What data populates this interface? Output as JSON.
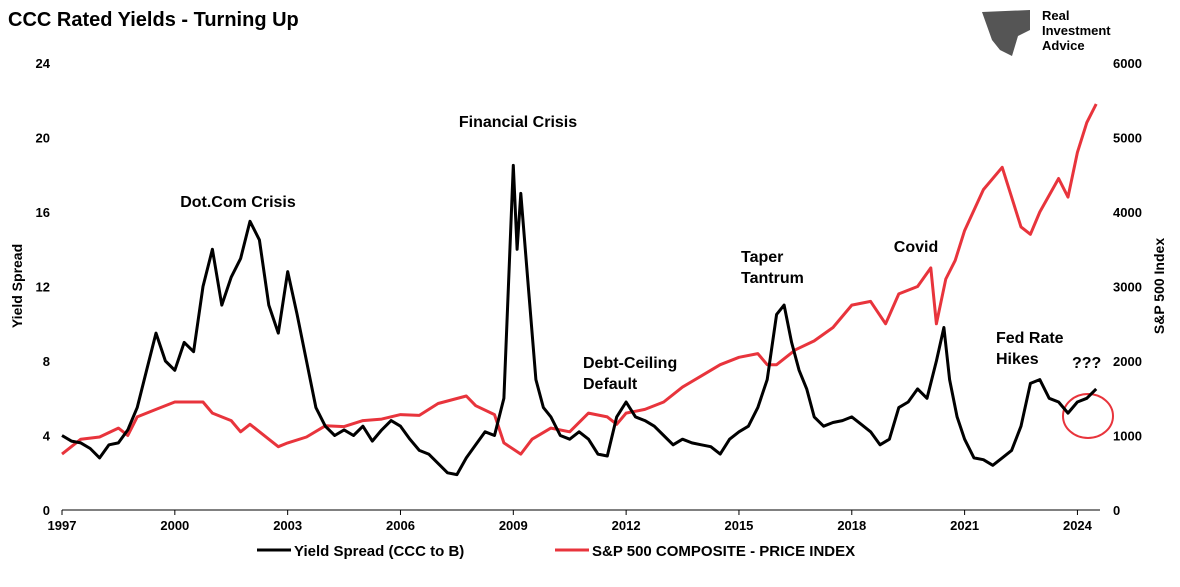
{
  "chart_data": {
    "type": "line",
    "title": "CCC Rated Yields - Turning Up",
    "logo": [
      "Real",
      "Investment",
      "Advice"
    ],
    "y_label": "Yield Spread",
    "y2_label": "S&P 500 Index",
    "xlim": [
      1997,
      2024.6
    ],
    "xticks": [
      1997,
      2000,
      2003,
      2006,
      2009,
      2012,
      2015,
      2018,
      2021,
      2024
    ],
    "ylim": [
      0,
      24
    ],
    "yticks": [
      0,
      4,
      8,
      12,
      16,
      20,
      24
    ],
    "y2lim": [
      0,
      6000
    ],
    "y2ticks": [
      0,
      1000,
      2000,
      3000,
      4000,
      5000,
      6000
    ],
    "annotations": [
      {
        "text": [
          "Dot.Com Crisis"
        ]
      },
      {
        "text": [
          "Financial Crisis"
        ]
      },
      {
        "text": [
          "Debt-Ceiling",
          "Default"
        ]
      },
      {
        "text": [
          "Taper",
          "Tantrum"
        ]
      },
      {
        "text": [
          "Covid"
        ]
      },
      {
        "text": [
          "Fed Rate",
          "Hikes"
        ]
      },
      {
        "text": [
          "???"
        ]
      }
    ],
    "series": [
      {
        "name": "Yield Spread (CCC to B)",
        "color": "#000000",
        "x": [
          1997,
          1997.25,
          1997.5,
          1997.75,
          1998,
          1998.25,
          1998.5,
          1998.75,
          1999,
          1999.25,
          1999.5,
          1999.75,
          2000,
          2000.25,
          2000.5,
          2000.75,
          2001,
          2001.25,
          2001.5,
          2001.75,
          2002,
          2002.25,
          2002.5,
          2002.75,
          2003,
          2003.25,
          2003.5,
          2003.75,
          2004,
          2004.25,
          2004.5,
          2004.75,
          2005,
          2005.25,
          2005.5,
          2005.75,
          2006,
          2006.25,
          2006.5,
          2006.75,
          2007,
          2007.25,
          2007.5,
          2007.75,
          2008,
          2008.25,
          2008.5,
          2008.75,
          2009,
          2009.1,
          2009.2,
          2009.4,
          2009.6,
          2009.8,
          2010,
          2010.25,
          2010.5,
          2010.75,
          2011,
          2011.25,
          2011.5,
          2011.75,
          2012,
          2012.25,
          2012.5,
          2012.75,
          2013,
          2013.25,
          2013.5,
          2013.75,
          2014,
          2014.25,
          2014.5,
          2014.75,
          2015,
          2015.25,
          2015.5,
          2015.75,
          2016,
          2016.2,
          2016.4,
          2016.6,
          2016.8,
          2017,
          2017.25,
          2017.5,
          2017.75,
          2018,
          2018.25,
          2018.5,
          2018.75,
          2019,
          2019.25,
          2019.5,
          2019.75,
          2020,
          2020.25,
          2020.45,
          2020.6,
          2020.8,
          2021,
          2021.25,
          2021.5,
          2021.75,
          2022,
          2022.25,
          2022.5,
          2022.75,
          2023,
          2023.25,
          2023.5,
          2023.75,
          2024,
          2024.25,
          2024.5
        ],
        "values": [
          4.0,
          3.7,
          3.6,
          3.3,
          2.8,
          3.5,
          3.6,
          4.3,
          5.5,
          7.5,
          9.5,
          8.0,
          7.5,
          9.0,
          8.5,
          12.0,
          14.0,
          11.0,
          12.5,
          13.5,
          15.5,
          14.5,
          11.0,
          9.5,
          12.8,
          10.5,
          8.0,
          5.5,
          4.5,
          4.0,
          4.3,
          4.0,
          4.5,
          3.7,
          4.3,
          4.8,
          4.5,
          3.8,
          3.2,
          3.0,
          2.5,
          2.0,
          1.9,
          2.8,
          3.5,
          4.2,
          4.0,
          6.0,
          18.5,
          14.0,
          17.0,
          12.0,
          7.0,
          5.5,
          5.0,
          4.0,
          3.8,
          4.2,
          3.8,
          3.0,
          2.9,
          5.0,
          5.8,
          5.0,
          4.8,
          4.5,
          4.0,
          3.5,
          3.8,
          3.6,
          3.5,
          3.4,
          3.0,
          3.8,
          4.2,
          4.5,
          5.5,
          7.0,
          10.5,
          11.0,
          9.0,
          7.5,
          6.5,
          5.0,
          4.5,
          4.7,
          4.8,
          5.0,
          4.6,
          4.2,
          3.5,
          3.8,
          5.5,
          5.8,
          6.5,
          6.0,
          8.0,
          9.8,
          7.0,
          5.0,
          3.8,
          2.8,
          2.7,
          2.4,
          2.8,
          3.2,
          4.5,
          6.8,
          7.0,
          6.0,
          5.8,
          5.2,
          5.8,
          6.0,
          6.5
        ]
      },
      {
        "name": "S&P 500 COMPOSITE - PRICE INDEX",
        "color": "#e8343c",
        "axis": "y2",
        "x": [
          1997,
          1997.5,
          1998,
          1998.5,
          1998.75,
          1999,
          1999.5,
          2000,
          2000.5,
          2000.75,
          2001,
          2001.5,
          2001.75,
          2002,
          2002.5,
          2002.75,
          2003,
          2003.5,
          2004,
          2004.5,
          2005,
          2005.5,
          2006,
          2006.5,
          2007,
          2007.75,
          2008,
          2008.5,
          2008.75,
          2009.2,
          2009.5,
          2010,
          2010.5,
          2011,
          2011.5,
          2011.75,
          2012,
          2012.5,
          2013,
          2013.5,
          2014,
          2014.5,
          2015,
          2015.5,
          2015.75,
          2016,
          2016.5,
          2017,
          2017.5,
          2018,
          2018.5,
          2018.9,
          2019.25,
          2019.75,
          2020.1,
          2020.25,
          2020.5,
          2020.75,
          2021,
          2021.5,
          2022,
          2022.25,
          2022.5,
          2022.75,
          2023,
          2023.5,
          2023.75,
          2024,
          2024.25,
          2024.5
        ],
        "values": [
          750,
          950,
          980,
          1100,
          1000,
          1250,
          1350,
          1450,
          1450,
          1450,
          1300,
          1200,
          1050,
          1150,
          950,
          850,
          900,
          980,
          1130,
          1120,
          1200,
          1220,
          1280,
          1270,
          1430,
          1530,
          1400,
          1280,
          900,
          750,
          950,
          1100,
          1050,
          1300,
          1250,
          1150,
          1300,
          1350,
          1450,
          1650,
          1800,
          1950,
          2050,
          2100,
          1950,
          1950,
          2150,
          2270,
          2450,
          2750,
          2800,
          2500,
          2900,
          3000,
          3250,
          2500,
          3100,
          3350,
          3750,
          4300,
          4600,
          4200,
          3800,
          3700,
          4000,
          4450,
          4200,
          4800,
          5200,
          5450
        ]
      }
    ]
  }
}
